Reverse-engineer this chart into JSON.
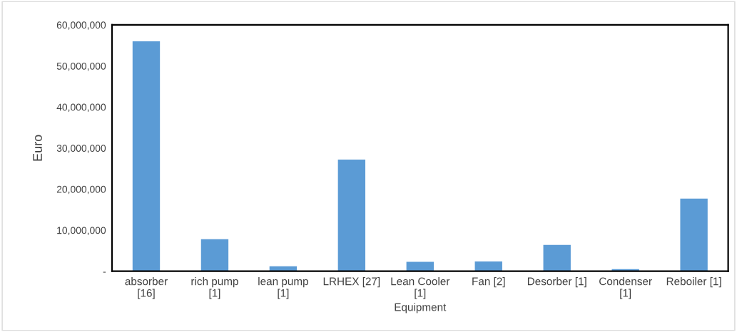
{
  "chart_data": {
    "type": "bar",
    "xlabel": "Equipment",
    "ylabel": "Euro",
    "categories": [
      "absorber\n[16]",
      "rich pump\n[1]",
      "lean pump\n[1]",
      "LRHEX [27]",
      "Lean Cooler\n[1]",
      "Fan [2]",
      "Desorber [1]",
      "Condenser\n[1]",
      "Reboiler [1]"
    ],
    "values": [
      56000000,
      7800000,
      1200000,
      27200000,
      2300000,
      2400000,
      6400000,
      500000,
      17700000
    ],
    "color": "#5b9bd5",
    "ylim": [
      0,
      60000000
    ],
    "yticks": [
      {
        "value": 0,
        "label": "-"
      },
      {
        "value": 10000000,
        "label": "10,000,000"
      },
      {
        "value": 20000000,
        "label": "20,000,000"
      },
      {
        "value": 30000000,
        "label": "30,000,000"
      },
      {
        "value": 40000000,
        "label": "40,000,000"
      },
      {
        "value": 50000000,
        "label": "50,000,000"
      },
      {
        "value": 60000000,
        "label": "60,000,000"
      }
    ],
    "grid": false,
    "legend": false
  }
}
